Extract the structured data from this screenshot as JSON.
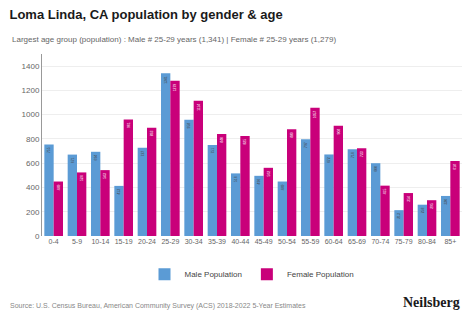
{
  "chart_data": {
    "type": "bar",
    "title": "Loma Linda, CA population by gender & age",
    "subtitle": "Largest age group (population) : Male # 25-29 years (1,341) | Female # 25-29 years (1,279)",
    "source": "Source: U.S. Census Bureau, American Community Survey (ACS) 2018-2022 5-Year Estimates",
    "annotations": [
      "Neilsberg"
    ],
    "categories": [
      "0-4",
      "5-9",
      "10-14",
      "15-19",
      "20-24",
      "25-29",
      "30-34",
      "35-39",
      "40-44",
      "45-49",
      "50-54",
      "55-59",
      "60-64",
      "65-69",
      "70-74",
      "75-79",
      "80-84",
      "85+"
    ],
    "series": [
      {
        "name": "Male Population",
        "color": "#5b9bd5",
        "values": [
          755,
          671,
          694,
          413,
          727,
          1341,
          958,
          751,
          516,
          496,
          449,
          797,
          672,
          714,
          600,
          213,
          258,
          330
        ]
      },
      {
        "name": "Female Population",
        "color": "#c9007a",
        "values": [
          449,
          524,
          543,
          961,
          893,
          1279,
          1114,
          840,
          825,
          562,
          880,
          1057,
          908,
          723,
          415,
          354,
          295,
          618
        ]
      }
    ],
    "ylim": [
      0,
      1500
    ],
    "yticks": [
      0,
      200,
      400,
      600,
      800,
      1000,
      1200,
      1400
    ],
    "grid": true,
    "legend": "bottom",
    "data_labels": true
  }
}
